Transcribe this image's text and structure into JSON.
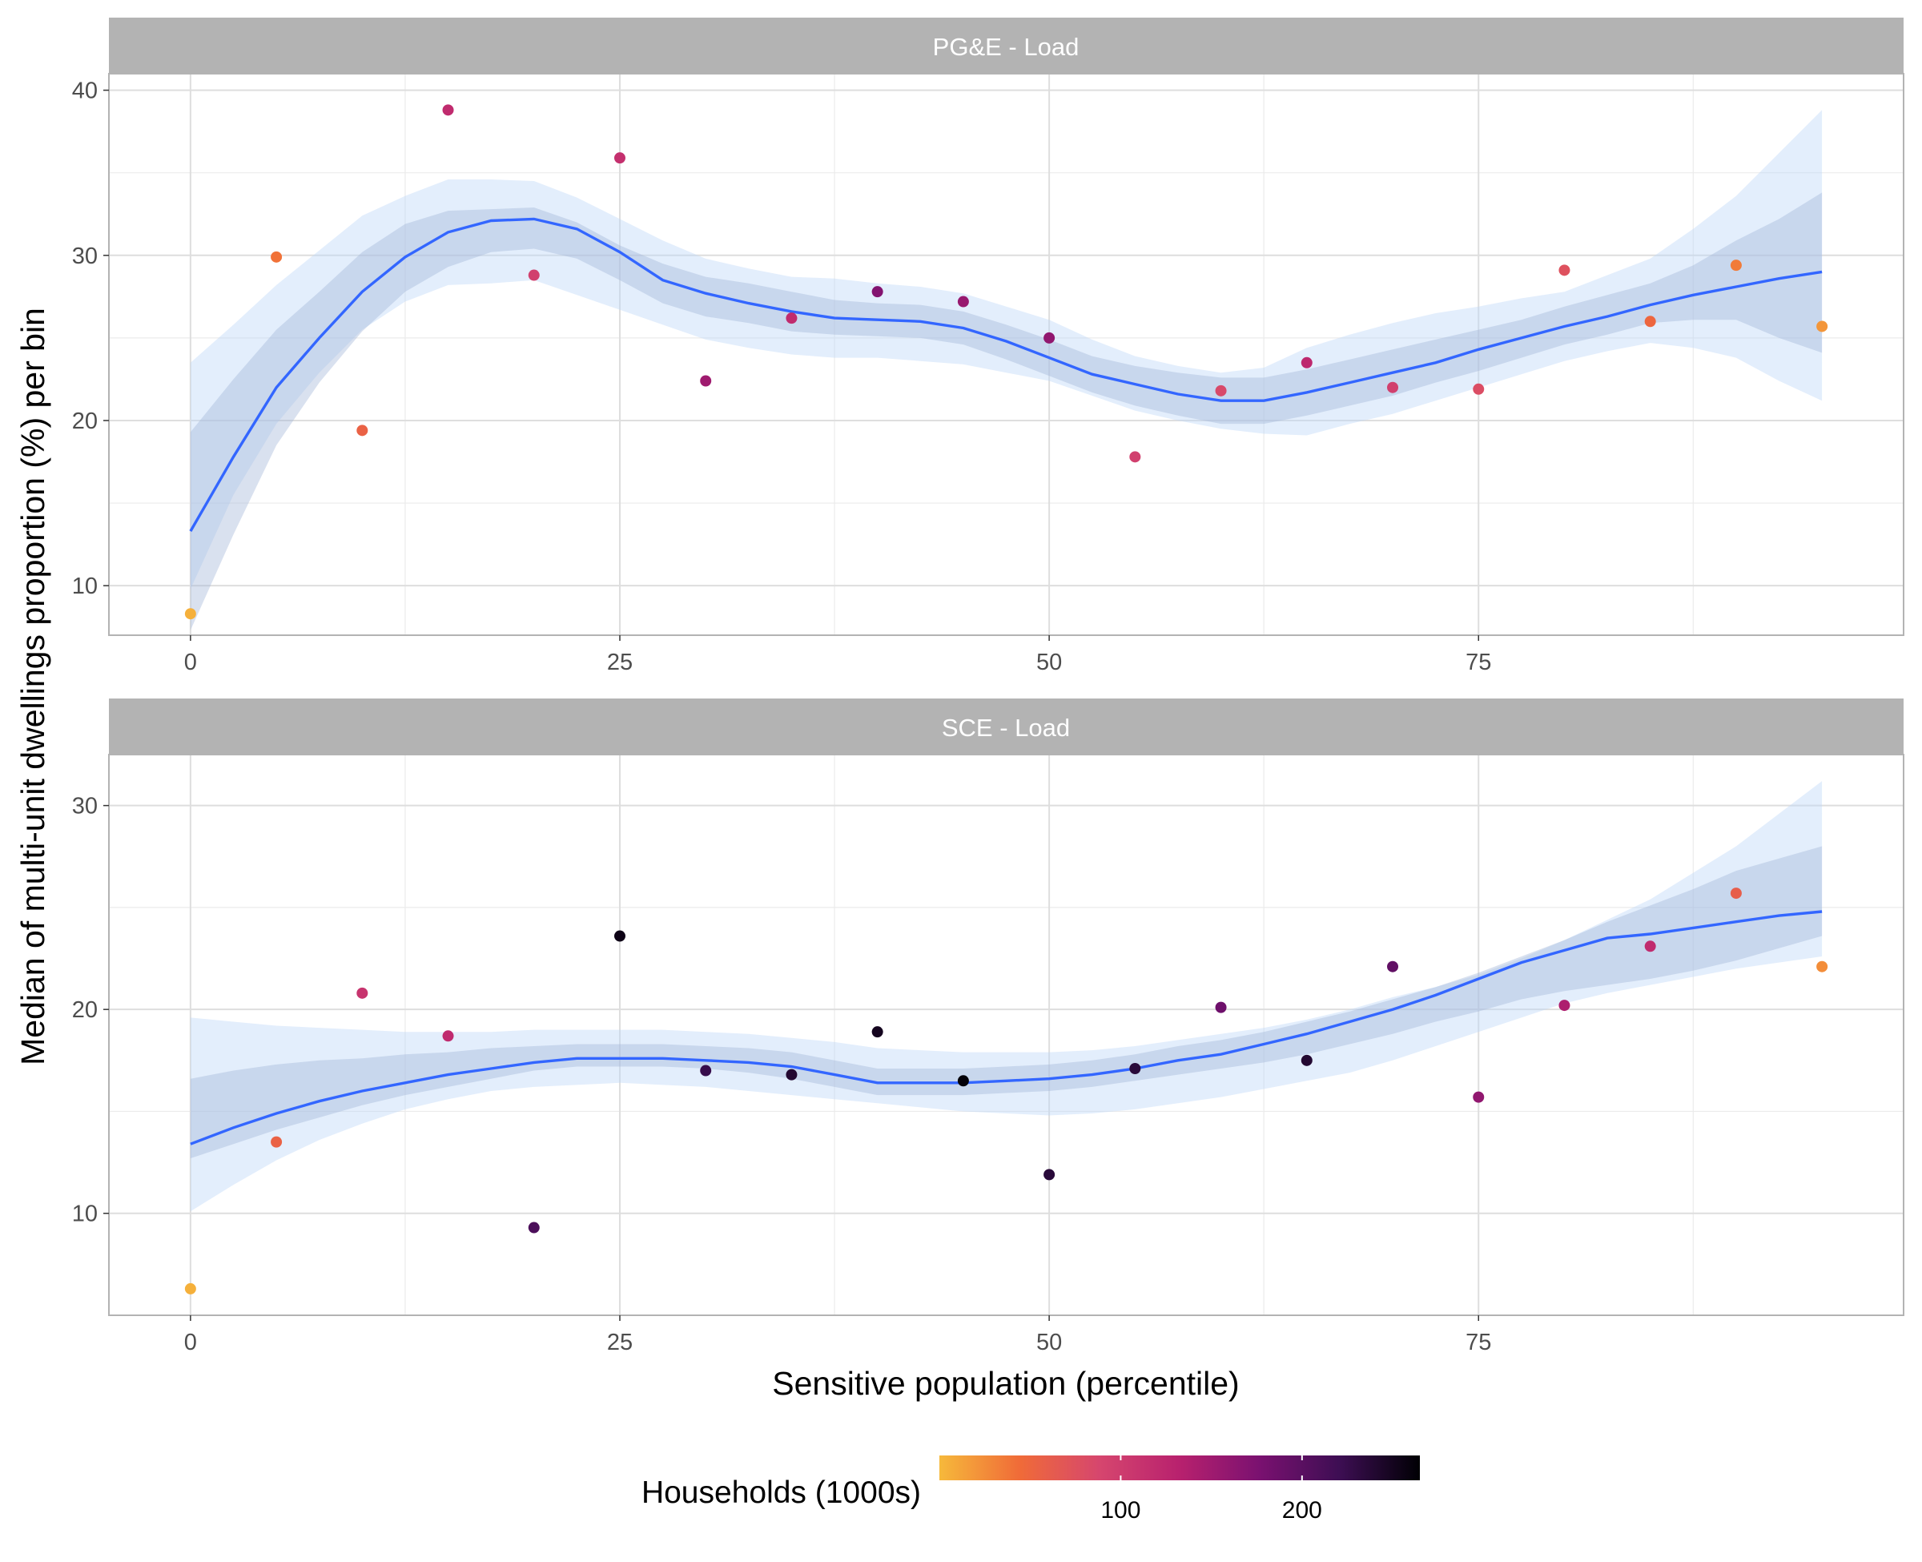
{
  "chart_data": {
    "type": "scatter",
    "xlabel": "Sensitive population (percentile)",
    "ylabel": "Median of multi-unit dwellings proportion (%) per bin",
    "xlim": [
      -4.75,
      99.75
    ],
    "x_ticks": [
      "0",
      "25",
      "50",
      "75"
    ],
    "x_tick_values": [
      0,
      25,
      50,
      75
    ],
    "x_minor_values": [
      12.5,
      37.5,
      62.5,
      87.5
    ],
    "grid": true,
    "smooth_color": "#3366ff",
    "ribbon_color": "#bcd6f7",
    "legend": {
      "title": "Households (1000s)",
      "placement": "bottom",
      "type": "colorbar",
      "range": [
        0,
        265
      ],
      "ticks": [
        "100",
        "200"
      ],
      "tick_values": [
        100,
        200
      ],
      "colors": [
        "#f6b93b",
        "#f06b38",
        "#d6466e",
        "#b8216e",
        "#7a1170",
        "#3d0e53",
        "#000004"
      ]
    },
    "panels": [
      {
        "strip": "PG&E - Load",
        "ylim": [
          7,
          41
        ],
        "y_ticks": [
          "10",
          "20",
          "30",
          "40"
        ],
        "y_tick_values": [
          10,
          20,
          30,
          40
        ],
        "y_minor_values": [
          15,
          25,
          35
        ],
        "points": {
          "x": [
            0,
            5,
            10,
            15,
            20,
            25,
            30,
            35,
            40,
            45,
            50,
            55,
            60,
            65,
            70,
            75,
            80,
            85,
            90,
            95
          ],
          "y": [
            8.3,
            29.9,
            19.4,
            38.8,
            28.8,
            35.9,
            22.4,
            26.2,
            27.8,
            27.2,
            25.0,
            17.8,
            21.8,
            23.5,
            22.0,
            21.9,
            29.1,
            26.0,
            29.4,
            25.7
          ],
          "households": [
            5,
            40,
            55,
            120,
            95,
            115,
            150,
            120,
            170,
            155,
            160,
            95,
            85,
            125,
            95,
            80,
            75,
            50,
            35,
            20
          ]
        },
        "smooth": {
          "x": [
            0,
            2.5,
            5,
            7.5,
            10,
            12.5,
            15,
            17.5,
            20,
            22.5,
            25,
            27.5,
            30,
            32.5,
            35,
            37.5,
            40,
            42.5,
            45,
            47.5,
            50,
            52.5,
            55,
            57.5,
            60,
            62.5,
            65,
            67.5,
            70,
            72.5,
            75,
            77.5,
            80,
            82.5,
            85,
            87.5,
            90,
            92.5,
            95
          ],
          "y": [
            13.3,
            17.8,
            22.0,
            25.0,
            27.8,
            29.9,
            31.4,
            32.1,
            32.2,
            31.6,
            30.2,
            28.5,
            27.7,
            27.1,
            26.6,
            26.2,
            26.1,
            26.0,
            25.6,
            24.8,
            23.8,
            22.8,
            22.2,
            21.6,
            21.2,
            21.2,
            21.7,
            22.3,
            22.9,
            23.5,
            24.3,
            25.0,
            25.7,
            26.3,
            27.0,
            27.6,
            28.1,
            28.6,
            29.0
          ],
          "se_inner_lo": [
            7.3,
            13.1,
            18.5,
            22.3,
            25.4,
            27.8,
            29.3,
            30.2,
            30.4,
            29.8,
            28.5,
            27.1,
            26.3,
            25.9,
            25.4,
            25.2,
            25.1,
            25.0,
            24.6,
            23.7,
            22.7,
            21.7,
            20.9,
            20.3,
            19.8,
            19.8,
            20.3,
            20.9,
            21.5,
            22.3,
            23.0,
            23.8,
            24.6,
            25.2,
            25.9,
            26.1,
            26.1,
            25.0,
            24.1
          ],
          "se_inner_hi": [
            19.3,
            22.5,
            25.5,
            27.8,
            30.2,
            31.9,
            32.7,
            32.8,
            32.9,
            32.0,
            30.6,
            29.5,
            28.7,
            28.3,
            27.8,
            27.3,
            27.1,
            27.0,
            26.6,
            25.8,
            24.9,
            23.9,
            23.3,
            22.9,
            22.6,
            22.6,
            23.1,
            23.7,
            24.3,
            24.9,
            25.5,
            26.1,
            26.9,
            27.6,
            28.3,
            29.4,
            30.9,
            32.2,
            33.8
          ],
          "se_outer_lo": [
            9.8,
            15.5,
            19.8,
            22.9,
            25.5,
            27.2,
            28.2,
            28.3,
            28.5,
            27.6,
            26.7,
            25.8,
            24.9,
            24.4,
            24.0,
            23.8,
            23.8,
            23.6,
            23.4,
            22.9,
            22.4,
            21.5,
            20.6,
            20.0,
            19.5,
            19.2,
            19.1,
            19.8,
            20.4,
            21.2,
            22.0,
            22.8,
            23.6,
            24.2,
            24.7,
            24.4,
            23.8,
            22.4,
            21.2
          ],
          "se_outer_hi": [
            23.5,
            25.8,
            28.2,
            30.3,
            32.4,
            33.6,
            34.6,
            34.6,
            34.5,
            33.5,
            32.2,
            30.9,
            29.8,
            29.2,
            28.7,
            28.6,
            28.3,
            28.1,
            27.7,
            26.9,
            26.1,
            24.9,
            23.9,
            23.3,
            22.9,
            23.2,
            24.4,
            25.2,
            25.9,
            26.5,
            26.9,
            27.4,
            27.8,
            28.8,
            29.8,
            31.6,
            33.6,
            36.2,
            38.8
          ]
        }
      },
      {
        "strip": "SCE - Load",
        "ylim": [
          5,
          32.5
        ],
        "y_ticks": [
          "10",
          "20",
          "30"
        ],
        "y_tick_values": [
          10,
          20,
          30
        ],
        "y_minor_values": [
          15,
          25
        ],
        "points": {
          "x": [
            0,
            5,
            10,
            15,
            20,
            25,
            30,
            35,
            40,
            45,
            50,
            55,
            60,
            65,
            70,
            75,
            80,
            85,
            90,
            95
          ],
          "y": [
            6.3,
            13.5,
            20.8,
            18.7,
            9.3,
            23.6,
            17.0,
            16.8,
            18.9,
            16.5,
            11.9,
            17.1,
            20.1,
            17.5,
            22.1,
            15.7,
            20.2,
            23.1,
            25.7,
            22.1
          ],
          "households": [
            5,
            55,
            110,
            120,
            210,
            255,
            225,
            240,
            250,
            262,
            235,
            235,
            185,
            240,
            195,
            160,
            140,
            120,
            60,
            25
          ]
        },
        "smooth": {
          "x": [
            0,
            2.5,
            5,
            7.5,
            10,
            12.5,
            15,
            17.5,
            20,
            22.5,
            25,
            27.5,
            30,
            32.5,
            35,
            37.5,
            40,
            42.5,
            45,
            47.5,
            50,
            52.5,
            55,
            57.5,
            60,
            62.5,
            65,
            67.5,
            70,
            72.5,
            75,
            77.5,
            80,
            82.5,
            85,
            87.5,
            90,
            92.5,
            95
          ],
          "y": [
            13.4,
            14.2,
            14.9,
            15.5,
            16.0,
            16.4,
            16.8,
            17.1,
            17.4,
            17.6,
            17.6,
            17.6,
            17.5,
            17.4,
            17.2,
            16.8,
            16.4,
            16.4,
            16.4,
            16.5,
            16.6,
            16.8,
            17.1,
            17.5,
            17.8,
            18.3,
            18.8,
            19.4,
            20.0,
            20.7,
            21.5,
            22.3,
            22.9,
            23.5,
            23.7,
            24.0,
            24.3,
            24.6,
            24.8
          ],
          "se_inner_lo": [
            12.7,
            13.4,
            14.1,
            14.7,
            15.3,
            15.8,
            16.2,
            16.6,
            17.0,
            17.2,
            17.2,
            17.2,
            17.1,
            16.9,
            16.6,
            16.2,
            15.8,
            15.8,
            15.8,
            15.9,
            16.0,
            16.2,
            16.5,
            16.8,
            17.1,
            17.4,
            17.8,
            18.3,
            18.8,
            19.4,
            19.9,
            20.5,
            20.9,
            21.2,
            21.5,
            21.9,
            22.4,
            23.0,
            23.6
          ],
          "se_inner_hi": [
            16.6,
            17.0,
            17.3,
            17.5,
            17.6,
            17.8,
            17.9,
            18.1,
            18.2,
            18.3,
            18.3,
            18.3,
            18.2,
            18.1,
            17.9,
            17.5,
            17.1,
            17.1,
            17.1,
            17.2,
            17.3,
            17.5,
            17.8,
            18.2,
            18.5,
            18.9,
            19.4,
            19.9,
            20.5,
            21.1,
            21.8,
            22.6,
            23.4,
            24.3,
            25.1,
            25.9,
            26.8,
            27.4,
            28.0
          ],
          "se_outer_lo": [
            10.1,
            11.4,
            12.6,
            13.6,
            14.4,
            15.1,
            15.6,
            16.0,
            16.2,
            16.3,
            16.4,
            16.3,
            16.2,
            16.0,
            15.8,
            15.6,
            15.4,
            15.2,
            15.0,
            14.9,
            14.8,
            14.9,
            15.1,
            15.4,
            15.7,
            16.1,
            16.5,
            16.9,
            17.5,
            18.2,
            18.9,
            19.6,
            20.3,
            20.8,
            21.2,
            21.6,
            22.0,
            22.3,
            22.6
          ],
          "se_outer_hi": [
            19.6,
            19.4,
            19.2,
            19.1,
            19.0,
            18.9,
            18.9,
            18.9,
            19.0,
            19.0,
            19.0,
            19.0,
            18.9,
            18.8,
            18.6,
            18.4,
            18.1,
            18.0,
            17.9,
            17.9,
            17.9,
            18.0,
            18.2,
            18.5,
            18.8,
            19.1,
            19.5,
            20.0,
            20.6,
            21.1,
            21.7,
            22.5,
            23.4,
            24.4,
            25.4,
            26.7,
            28.0,
            29.6,
            31.2
          ]
        }
      }
    ]
  }
}
